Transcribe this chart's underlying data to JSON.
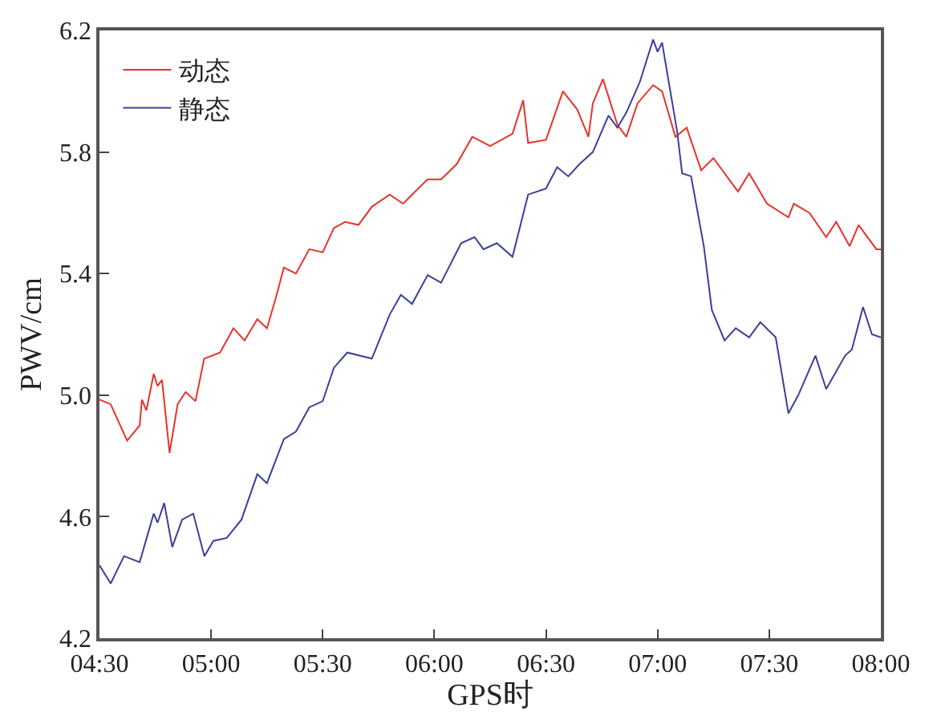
{
  "chart_data": {
    "type": "line",
    "xlabel": "GPS时",
    "ylabel": "PWV/cm",
    "xlim": [
      4.5,
      8.0
    ],
    "ylim": [
      4.2,
      6.2
    ],
    "xticks": [
      {
        "value": 4.5,
        "label": "04:30"
      },
      {
        "value": 5,
        "label": "05:00"
      },
      {
        "value": 5.5,
        "label": "05:30"
      },
      {
        "value": 6,
        "label": "06:00"
      },
      {
        "value": 6.5,
        "label": "06:30"
      },
      {
        "value": 7,
        "label": "07:00"
      },
      {
        "value": 7.5,
        "label": "07:30"
      },
      {
        "value": 8,
        "label": "08:00"
      }
    ],
    "yticks": [
      {
        "value": 4.2,
        "label": "4.2"
      },
      {
        "value": 4.6,
        "label": "4.6"
      },
      {
        "value": 5.0,
        "label": "5.0"
      },
      {
        "value": 5.4,
        "label": "5.4"
      },
      {
        "value": 5.8,
        "label": "5.8"
      },
      {
        "value": 6.2,
        "label": "6.2"
      }
    ],
    "grid": false,
    "legend": "top left",
    "marker": "none",
    "line_style": "solid",
    "series": [
      {
        "name": "动态",
        "color": "#e8322c",
        "x": [
          4.5,
          4.55,
          4.624,
          4.68,
          4.69,
          4.71,
          4.743,
          4.76,
          4.78,
          4.814,
          4.85,
          4.886,
          4.93,
          4.969,
          5.04,
          5.1,
          5.15,
          5.207,
          5.25,
          5.29,
          5.326,
          5.38,
          5.44,
          5.5,
          5.55,
          5.6,
          5.66,
          5.72,
          5.8,
          5.86,
          5.969,
          6.03,
          6.1,
          6.17,
          6.25,
          6.35,
          6.398,
          6.42,
          6.5,
          6.576,
          6.64,
          6.69,
          6.71,
          6.755,
          6.82,
          6.86,
          6.91,
          6.98,
          7.02,
          7.08,
          7.13,
          7.195,
          7.25,
          7.36,
          7.41,
          7.49,
          7.586,
          7.61,
          7.68,
          7.755,
          7.8,
          7.86,
          7.9,
          7.98,
          8.0
        ],
        "values": [
          4.985,
          4.97,
          4.85,
          4.9,
          4.985,
          4.95,
          5.07,
          5.03,
          5.05,
          4.81,
          4.97,
          5.01,
          4.98,
          5.12,
          5.14,
          5.22,
          5.18,
          5.25,
          5.22,
          5.32,
          5.42,
          5.4,
          5.48,
          5.47,
          5.55,
          5.57,
          5.56,
          5.62,
          5.66,
          5.63,
          5.71,
          5.71,
          5.76,
          5.85,
          5.82,
          5.86,
          5.97,
          5.83,
          5.84,
          6.0,
          5.94,
          5.85,
          5.96,
          6.04,
          5.89,
          5.85,
          5.96,
          6.02,
          6.0,
          5.85,
          5.88,
          5.74,
          5.78,
          5.67,
          5.73,
          5.63,
          5.585,
          5.63,
          5.6,
          5.52,
          5.57,
          5.49,
          5.56,
          5.48,
          5.48
        ]
      },
      {
        "name": "静态",
        "color": "#3b3f9a",
        "x": [
          4.5,
          4.55,
          4.61,
          4.68,
          4.743,
          4.76,
          4.79,
          4.826,
          4.87,
          4.92,
          4.97,
          5.01,
          5.07,
          5.136,
          5.207,
          5.25,
          5.326,
          5.38,
          5.44,
          5.5,
          5.55,
          5.61,
          5.72,
          5.8,
          5.85,
          5.9,
          5.97,
          6.03,
          6.12,
          6.18,
          6.22,
          6.28,
          6.35,
          6.42,
          6.5,
          6.55,
          6.6,
          6.65,
          6.71,
          6.78,
          6.82,
          6.86,
          6.92,
          6.98,
          7.0,
          7.02,
          7.087,
          7.11,
          7.15,
          7.207,
          7.243,
          7.3,
          7.35,
          7.41,
          7.46,
          7.529,
          7.586,
          7.63,
          7.707,
          7.755,
          7.84,
          7.87,
          7.92,
          7.96,
          8.0
        ],
        "values": [
          4.44,
          4.38,
          4.47,
          4.45,
          4.61,
          4.58,
          4.645,
          4.5,
          4.59,
          4.61,
          4.47,
          4.52,
          4.53,
          4.59,
          4.74,
          4.71,
          4.855,
          4.88,
          4.96,
          4.98,
          5.09,
          5.14,
          5.12,
          5.265,
          5.33,
          5.3,
          5.395,
          5.37,
          5.5,
          5.52,
          5.48,
          5.5,
          5.455,
          5.66,
          5.68,
          5.75,
          5.72,
          5.76,
          5.8,
          5.92,
          5.88,
          5.93,
          6.03,
          6.17,
          6.13,
          6.16,
          5.87,
          5.73,
          5.72,
          5.49,
          5.28,
          5.18,
          5.22,
          5.19,
          5.24,
          5.19,
          4.94,
          5.0,
          5.13,
          5.02,
          5.13,
          5.15,
          5.29,
          5.2,
          5.19
        ]
      }
    ]
  }
}
